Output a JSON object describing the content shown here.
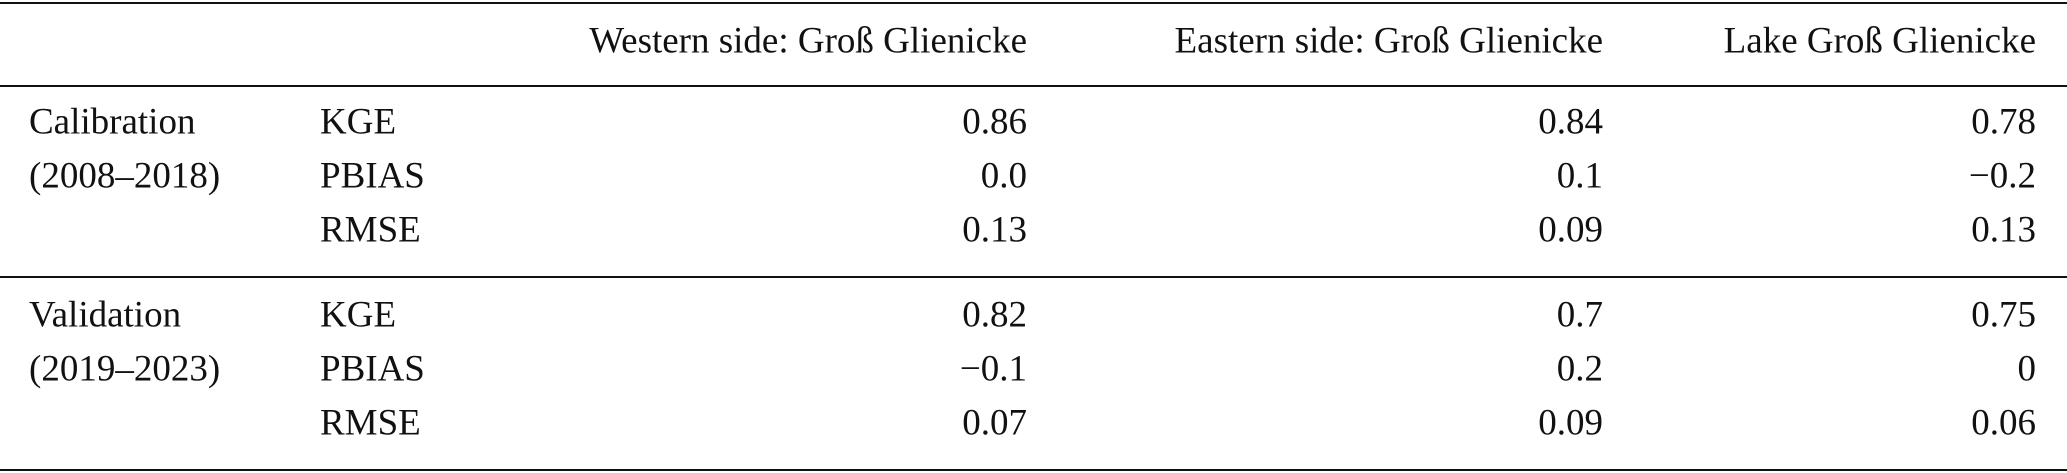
{
  "table": {
    "header": [
      "Western side: Groß Glienicke",
      "Eastern side: Groß Glienicke",
      "Lake Groß Glienicke"
    ],
    "groups": [
      {
        "label": [
          "Calibration",
          "(2008–2018)"
        ],
        "rows": [
          {
            "metric": "KGE",
            "values": [
              "0.86",
              "0.84",
              "0.78"
            ]
          },
          {
            "metric": "PBIAS",
            "values": [
              "0.0",
              "0.1",
              "−0.2"
            ]
          },
          {
            "metric": "RMSE",
            "values": [
              "0.13",
              "0.09",
              "0.13"
            ]
          }
        ]
      },
      {
        "label": [
          "Validation",
          "(2019–2023)"
        ],
        "rows": [
          {
            "metric": "KGE",
            "values": [
              "0.82",
              "0.7",
              "0.75"
            ]
          },
          {
            "metric": "PBIAS",
            "values": [
              "−0.1",
              "0.2",
              "0"
            ]
          },
          {
            "metric": "RMSE",
            "values": [
              "0.07",
              "0.09",
              "0.06"
            ]
          }
        ]
      }
    ]
  }
}
